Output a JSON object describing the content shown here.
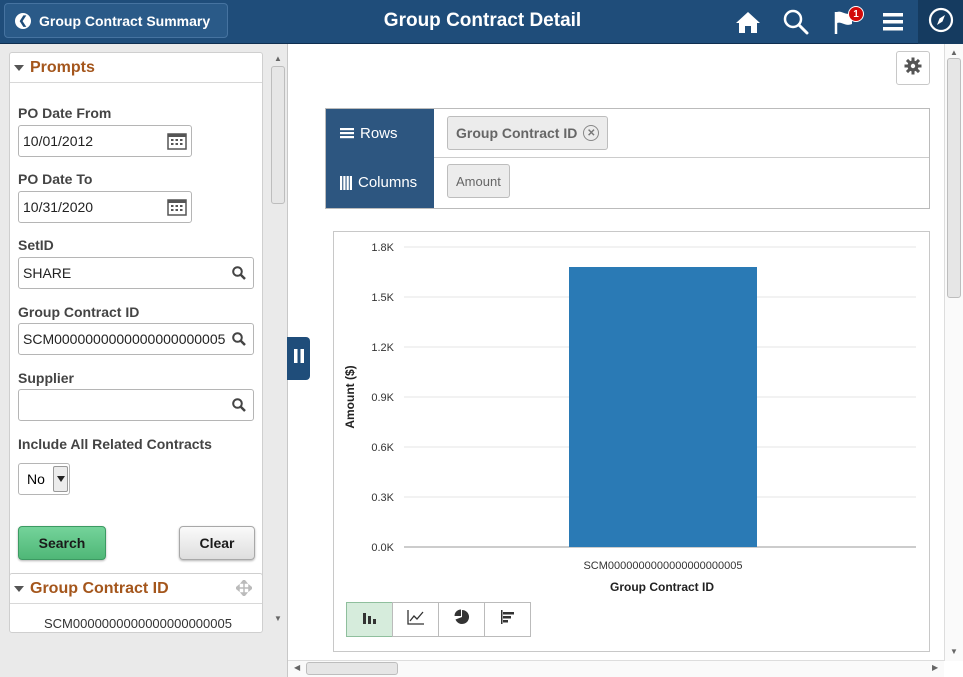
{
  "header": {
    "back_label": "Group Contract Summary",
    "title": "Group Contract Detail",
    "notification_count": "1",
    "icons": [
      "home-icon",
      "search-icon",
      "flag-icon",
      "menu-icon",
      "compass-icon"
    ]
  },
  "prompts": {
    "title": "Prompts",
    "po_date_from_label": "PO Date From",
    "po_date_from": "10/01/2012",
    "po_date_to_label": "PO Date To",
    "po_date_to": "10/31/2020",
    "setid_label": "SetID",
    "setid": "SHARE",
    "group_contract_label": "Group Contract ID",
    "group_contract": "SCM0000000000000000000005",
    "supplier_label": "Supplier",
    "supplier": "",
    "include_label": "Include All Related Contracts",
    "include_value": "No",
    "search_label": "Search",
    "clear_label": "Clear"
  },
  "facet": {
    "title": "Group Contract ID",
    "item": "SCM0000000000000000000005"
  },
  "pivot": {
    "rows_label": "Rows",
    "rows_chip": "Group Contract ID",
    "columns_label": "Columns",
    "columns_chip": "Amount"
  },
  "chart_data": {
    "type": "bar",
    "categories": [
      "SCM0000000000000000000005"
    ],
    "values": [
      1680
    ],
    "ylabel": "Amount ($)",
    "xlabel": "Group Contract ID",
    "ylim": [
      0,
      1800
    ],
    "yticks": [
      "0.0K",
      "0.3K",
      "0.6K",
      "0.9K",
      "1.2K",
      "1.5K",
      "1.8K"
    ],
    "grid": true,
    "bar_color": "#2a7ab5"
  },
  "colors": {
    "header_bg": "#1f4d7a",
    "accent_orange": "#a4561c",
    "search_green": "#4fb777"
  }
}
